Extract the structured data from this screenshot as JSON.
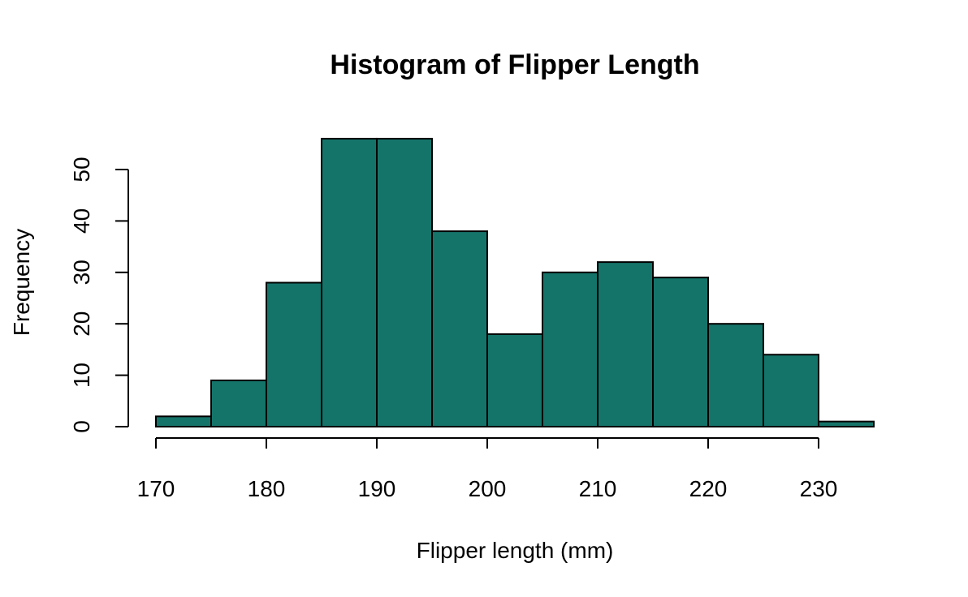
{
  "chart_data": {
    "type": "bar",
    "title": "Histogram of Flipper Length",
    "xlabel": "Flipper length (mm)",
    "ylabel": "Frequency",
    "bins": [
      {
        "start": 170,
        "end": 175,
        "count": 2
      },
      {
        "start": 175,
        "end": 180,
        "count": 9
      },
      {
        "start": 180,
        "end": 185,
        "count": 28
      },
      {
        "start": 185,
        "end": 190,
        "count": 56
      },
      {
        "start": 190,
        "end": 195,
        "count": 56
      },
      {
        "start": 195,
        "end": 200,
        "count": 38
      },
      {
        "start": 200,
        "end": 205,
        "count": 18
      },
      {
        "start": 205,
        "end": 210,
        "count": 30
      },
      {
        "start": 210,
        "end": 215,
        "count": 32
      },
      {
        "start": 215,
        "end": 220,
        "count": 29
      },
      {
        "start": 220,
        "end": 225,
        "count": 20
      },
      {
        "start": 225,
        "end": 230,
        "count": 14
      },
      {
        "start": 230,
        "end": 235,
        "count": 1
      }
    ],
    "x_ticks": [
      170,
      180,
      190,
      200,
      210,
      220,
      230
    ],
    "y_ticks": [
      0,
      10,
      20,
      30,
      40,
      50
    ],
    "xlim": [
      170,
      235
    ],
    "ylim": [
      0,
      56
    ],
    "grid": false,
    "colors": {
      "bar_fill": "#15746A",
      "bar_stroke": "#000000"
    }
  }
}
